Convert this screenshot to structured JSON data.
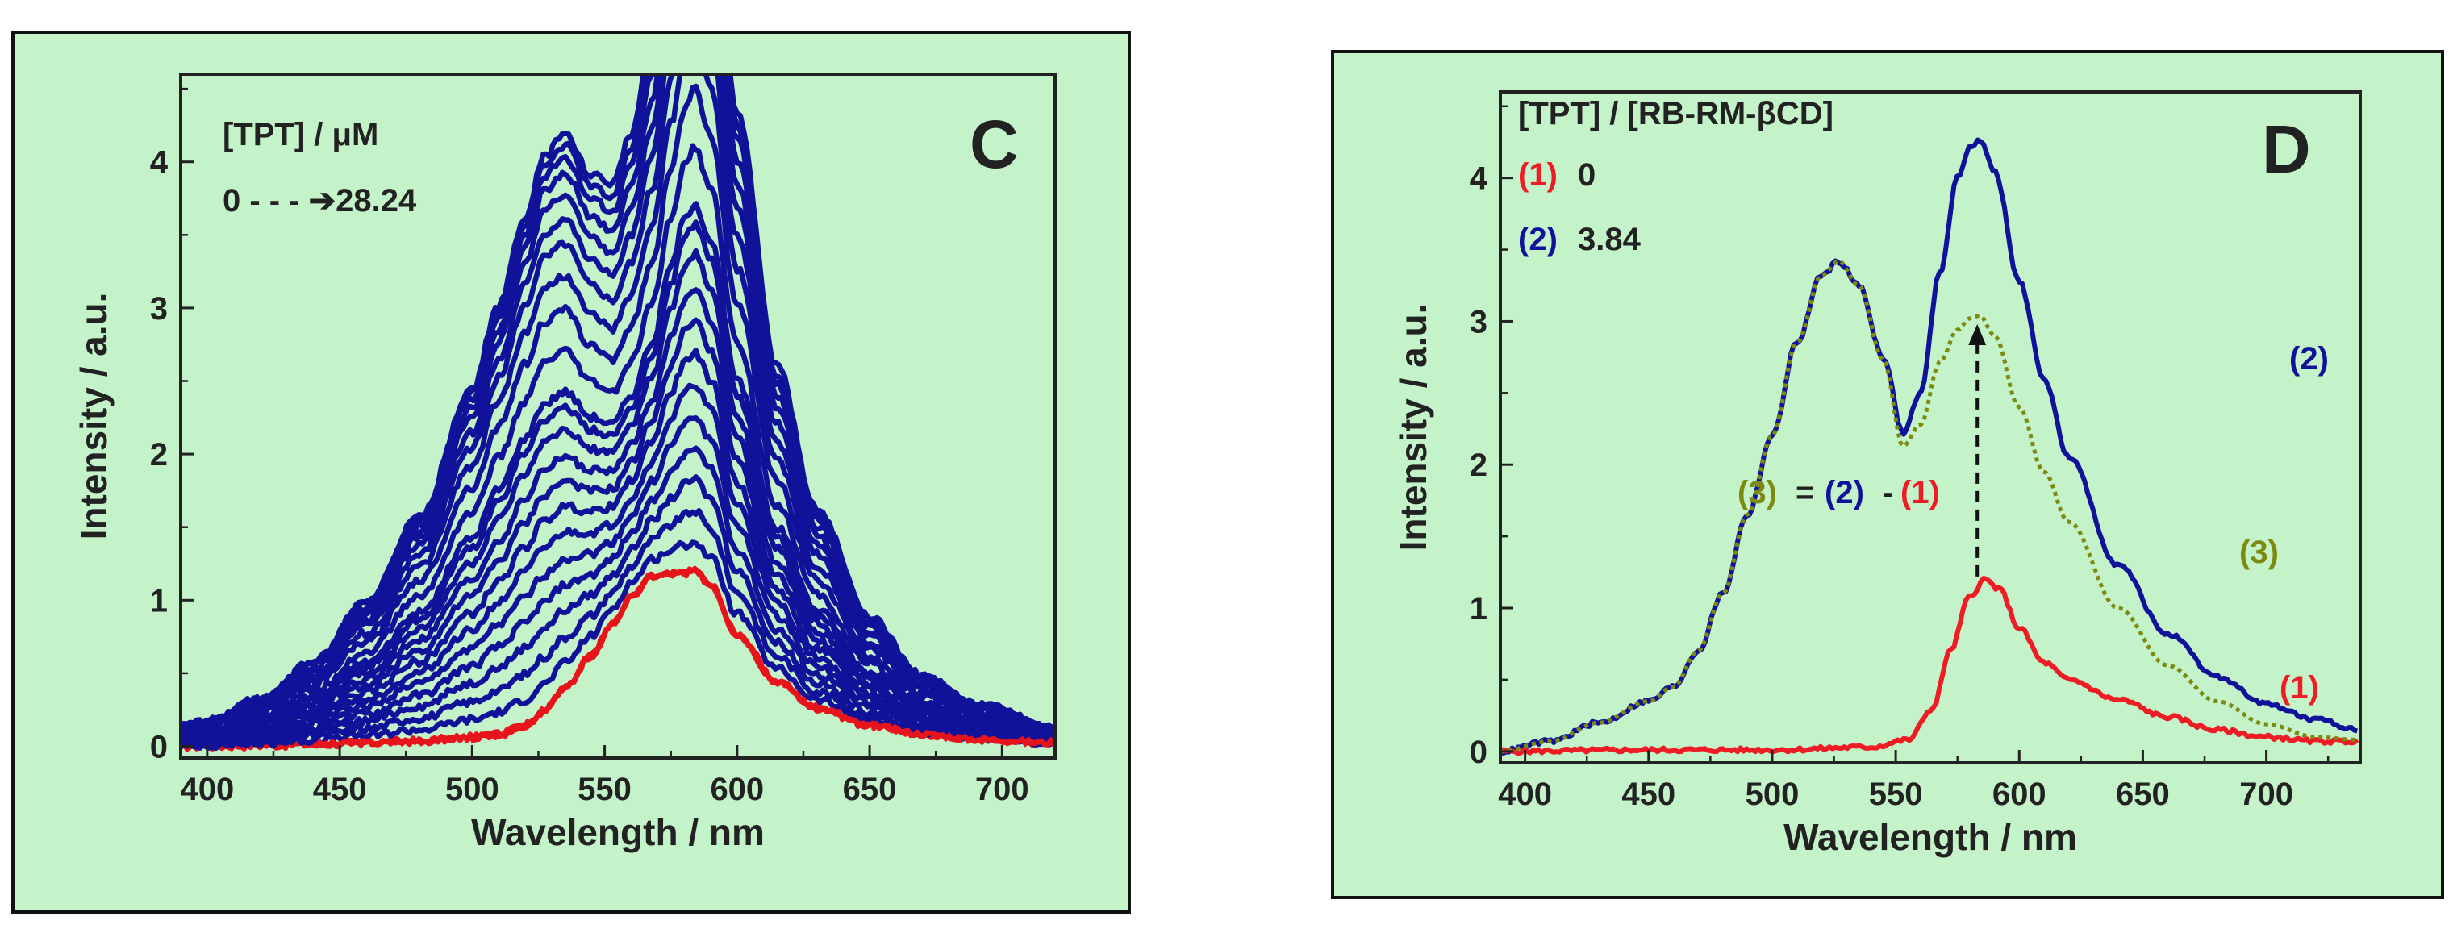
{
  "chart_data": [
    {
      "panel_letter": "C",
      "type": "line",
      "xlabel": "Wavelength / nm",
      "ylabel": "Intensity / a.u.",
      "xlim": [
        390,
        720
      ],
      "ylim": [
        -0.08,
        4.6
      ],
      "xticks": [
        400,
        450,
        500,
        550,
        600,
        650,
        700
      ],
      "yticks": [
        0,
        1,
        2,
        3,
        4
      ],
      "legend_title": "[TPT] / μM",
      "legend_range": "0 - - - ➔28.24",
      "colors": {
        "titration_curves": "#10129a",
        "initial_curve": "#e8141c"
      },
      "x": [
        390,
        400,
        420,
        440,
        460,
        480,
        500,
        510,
        520,
        527,
        535,
        545,
        553,
        560,
        568,
        575,
        580,
        584,
        590,
        600,
        615,
        630,
        650,
        670,
        690,
        720
      ],
      "shape": {
        "band_A": [
          0.04,
          0.05,
          0.09,
          0.16,
          0.27,
          0.43,
          0.67,
          0.82,
          0.95,
          1.0,
          0.93,
          0.68,
          0.5,
          0.47,
          0.55,
          0.8,
          0.95,
          1.0,
          0.94,
          0.7,
          0.43,
          0.28,
          0.15,
          0.08,
          0.05,
          0.02
        ],
        "band_B": [
          0.0,
          0.0,
          0.005,
          0.01,
          0.02,
          0.03,
          0.05,
          0.07,
          0.12,
          0.2,
          0.33,
          0.52,
          0.7,
          0.85,
          0.97,
          0.98,
          0.99,
          1.0,
          0.92,
          0.64,
          0.37,
          0.22,
          0.12,
          0.07,
          0.04,
          0.02
        ],
        "note": "curve(i) = a_i*band_A + b_i*band_B"
      },
      "series": [
        {
          "a": 0.0,
          "b": 1.2
        },
        {
          "a": 0.18,
          "b": 1.22
        },
        {
          "a": 0.36,
          "b": 1.25
        },
        {
          "a": 0.55,
          "b": 1.28
        },
        {
          "a": 0.72,
          "b": 1.32
        },
        {
          "a": 0.9,
          "b": 1.36
        },
        {
          "a": 1.08,
          "b": 1.4
        },
        {
          "a": 1.25,
          "b": 1.45
        },
        {
          "a": 1.42,
          "b": 1.5
        },
        {
          "a": 1.58,
          "b": 1.56
        },
        {
          "a": 1.75,
          "b": 1.62
        },
        {
          "a": 1.9,
          "b": 1.68
        },
        {
          "a": 2.0,
          "b": 1.72
        },
        {
          "a": 2.25,
          "b": 1.85
        },
        {
          "a": 2.5,
          "b": 2.0
        },
        {
          "a": 2.7,
          "b": 2.15
        },
        {
          "a": 2.88,
          "b": 2.3
        },
        {
          "a": 3.02,
          "b": 2.45
        },
        {
          "a": 3.15,
          "b": 2.58
        },
        {
          "a": 3.25,
          "b": 2.72
        },
        {
          "a": 3.33,
          "b": 2.85
        },
        {
          "a": 3.38,
          "b": 2.95
        },
        {
          "a": 3.42,
          "b": 3.05
        }
      ]
    },
    {
      "panel_letter": "D",
      "type": "line",
      "xlabel": "Wavelength / nm",
      "ylabel": "Intensity / a.u.",
      "xlim": [
        390,
        738
      ],
      "ylim": [
        -0.08,
        4.6
      ],
      "xticks": [
        400,
        450,
        500,
        550,
        600,
        650,
        700
      ],
      "yticks": [
        0,
        1,
        2,
        3,
        4
      ],
      "legend_title": "[TPT] / [RB-RM-βCD]",
      "legend_entries": [
        {
          "tag": "(1)",
          "value": "0",
          "color": "#ee1c24"
        },
        {
          "tag": "(2)",
          "value": "3.84",
          "color": "#10129a"
        }
      ],
      "equation": {
        "lhs": "(3)",
        "eq": "=",
        "a": "(2)",
        "minus": "-",
        "b": "(1)"
      },
      "series": [
        {
          "name": "(1)",
          "color": "#ee1c24",
          "x": [
            390,
            450,
            500,
            540,
            555,
            565,
            572,
            580,
            586,
            592,
            600,
            610,
            620,
            640,
            660,
            680,
            700,
            720,
            738
          ],
          "y": [
            0.0,
            0.01,
            0.01,
            0.03,
            0.08,
            0.3,
            0.7,
            1.08,
            1.2,
            1.13,
            0.86,
            0.62,
            0.5,
            0.36,
            0.24,
            0.15,
            0.1,
            0.07,
            0.07
          ]
        },
        {
          "name": "(2)",
          "color": "#10129a",
          "x": [
            390,
            410,
            430,
            450,
            460,
            470,
            480,
            490,
            500,
            510,
            520,
            527,
            535,
            545,
            553,
            560,
            568,
            575,
            580,
            584,
            590,
            600,
            610,
            620,
            640,
            660,
            680,
            700,
            720,
            738
          ],
          "y": [
            0.0,
            0.07,
            0.2,
            0.35,
            0.45,
            0.7,
            1.1,
            1.65,
            2.2,
            2.85,
            3.32,
            3.42,
            3.25,
            2.75,
            2.22,
            2.5,
            3.35,
            4.0,
            4.22,
            4.26,
            4.05,
            3.28,
            2.6,
            2.05,
            1.3,
            0.82,
            0.52,
            0.33,
            0.22,
            0.15
          ]
        },
        {
          "name": "(3)",
          "color": "#7d8a10",
          "x": [
            390,
            410,
            430,
            450,
            460,
            470,
            480,
            490,
            500,
            510,
            520,
            527,
            535,
            545,
            553,
            560,
            568,
            575,
            580,
            584,
            590,
            600,
            610,
            620,
            640,
            660,
            680,
            700,
            720,
            738
          ],
          "y": [
            0.0,
            0.07,
            0.2,
            0.35,
            0.45,
            0.7,
            1.1,
            1.65,
            2.2,
            2.85,
            3.32,
            3.42,
            3.25,
            2.73,
            2.13,
            2.28,
            2.72,
            2.94,
            3.02,
            3.04,
            2.9,
            2.4,
            1.95,
            1.6,
            1.0,
            0.6,
            0.35,
            0.19,
            0.1,
            0.08
          ]
        }
      ],
      "series_labels": [
        "(1)",
        "(2)",
        "(3)"
      ],
      "arrow": {
        "x": 583,
        "from_y": 1.22,
        "to_y": 2.98
      }
    }
  ]
}
